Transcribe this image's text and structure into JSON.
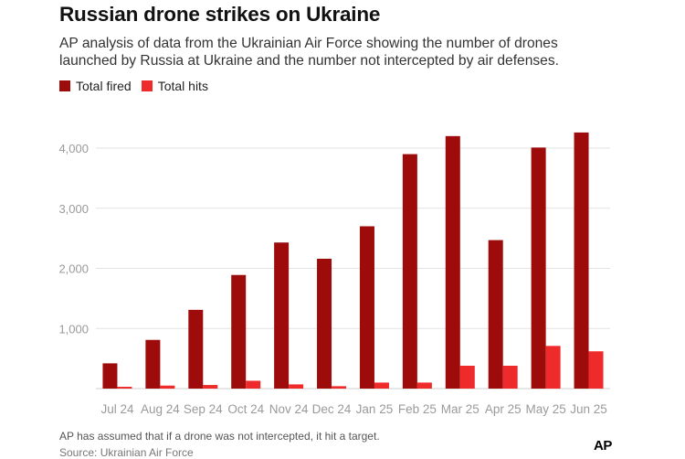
{
  "title": "Russian drone strikes on Ukraine",
  "subtitle": "AP analysis of data from the Ukrainian Air Force showing the number of drones launched by Russia at Ukraine and the number not intercepted by air defenses.",
  "note": "AP has assumed that if a drone was not intercepted, it hit a target.",
  "source": "Source: Ukrainian Air Force",
  "logo": "AP",
  "colors": {
    "total_fired": "#9e0b0b",
    "total_hits": "#ef2a2a",
    "grid": "#e3e3e3",
    "tick_text": "#9a9a9a"
  },
  "chart_data": {
    "type": "bar",
    "categories": [
      "Jul 24",
      "Aug 24",
      "Sep 24",
      "Oct 24",
      "Nov 24",
      "Dec 24",
      "Jan 25",
      "Feb 25",
      "Mar 25",
      "Apr 25",
      "May 25",
      "Jun 25"
    ],
    "series": [
      {
        "name": "Total fired",
        "values": [
          420,
          810,
          1310,
          1890,
          2430,
          2160,
          2700,
          3900,
          4200,
          2470,
          4010,
          4260
        ]
      },
      {
        "name": "Total hits",
        "values": [
          30,
          50,
          60,
          130,
          70,
          40,
          100,
          100,
          380,
          380,
          710,
          620
        ]
      }
    ],
    "y_ticks": [
      1000,
      2000,
      3000,
      4000
    ],
    "y_tick_labels": [
      "1,000",
      "2,000",
      "3,000",
      "4,000"
    ],
    "ylim": [
      0,
      4300
    ],
    "legend_position": "top-left",
    "grid": true
  }
}
